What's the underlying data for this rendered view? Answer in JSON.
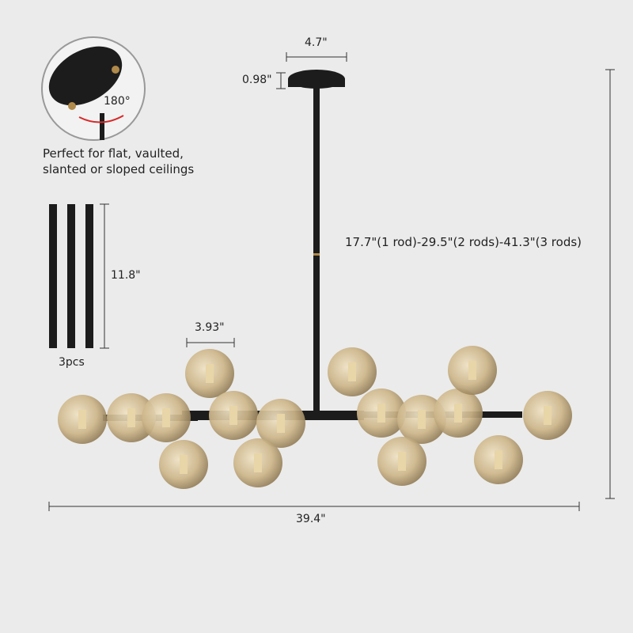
{
  "inset": {
    "rotation_label": "180°",
    "caption_line1": "Perfect for flat, vaulted,",
    "caption_line2": "slanted or sloped ceilings"
  },
  "rods": {
    "length_label": "11.8\"",
    "count_label": "3pcs"
  },
  "dimensions": {
    "canopy_width": "4.7\"",
    "canopy_height": "0.98\"",
    "globe_diameter": "3.93\"",
    "height_range": "17.7\"(1 rod)-29.5\"(2 rods)-41.3\"(3 rods)",
    "total_width": "39.4\""
  },
  "colors": {
    "background": "#ebebeb",
    "metal": "#1c1c1c",
    "brass": "#b08a4a",
    "glass": "#c9b48a",
    "arrow": "#d62a2a"
  }
}
